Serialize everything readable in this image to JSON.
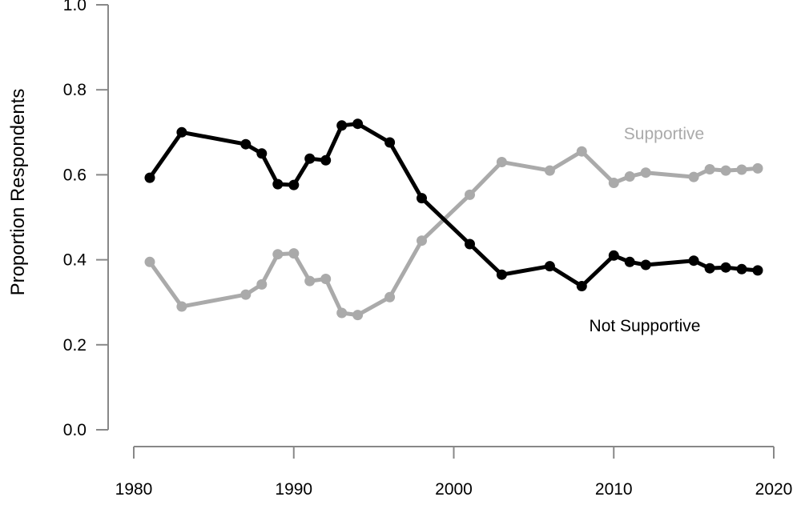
{
  "chart_data": {
    "type": "line",
    "title": "",
    "xlabel": "",
    "ylabel": "Proportion Respondents",
    "xlim": [
      1980,
      2020
    ],
    "ylim": [
      0,
      1
    ],
    "x_ticks": [
      "1980",
      "1990",
      "2000",
      "2010",
      "2020"
    ],
    "y_ticks": [
      "0.0",
      "0.2",
      "0.4",
      "0.6",
      "0.8",
      "1.0"
    ],
    "grid": false,
    "series": [
      {
        "name": "Supportive",
        "color": "#aaaaaa",
        "points": [
          [
            1981,
            0.395
          ],
          [
            1983,
            0.29
          ],
          [
            1987,
            0.318
          ],
          [
            1988,
            0.342
          ],
          [
            1989,
            0.413
          ],
          [
            1990,
            0.415
          ],
          [
            1991,
            0.35
          ],
          [
            1992,
            0.355
          ],
          [
            1993,
            0.275
          ],
          [
            1994,
            0.27
          ],
          [
            1996,
            0.312
          ],
          [
            1998,
            0.445
          ],
          [
            2001,
            0.553
          ],
          [
            2003,
            0.63
          ],
          [
            2006,
            0.61
          ],
          [
            2008,
            0.655
          ],
          [
            2010,
            0.581
          ],
          [
            2011,
            0.596
          ],
          [
            2012,
            0.605
          ],
          [
            2015,
            0.595
          ],
          [
            2016,
            0.613
          ],
          [
            2017,
            0.61
          ],
          [
            2018,
            0.612
          ],
          [
            2019,
            0.615
          ]
        ]
      },
      {
        "name": "Not Supportive",
        "color": "#000000",
        "points": [
          [
            1981,
            0.593
          ],
          [
            1983,
            0.7
          ],
          [
            1987,
            0.672
          ],
          [
            1988,
            0.65
          ],
          [
            1989,
            0.578
          ],
          [
            1990,
            0.576
          ],
          [
            1991,
            0.638
          ],
          [
            1992,
            0.634
          ],
          [
            1993,
            0.716
          ],
          [
            1994,
            0.72
          ],
          [
            1996,
            0.676
          ],
          [
            1998,
            0.545
          ],
          [
            2001,
            0.437
          ],
          [
            2003,
            0.365
          ],
          [
            2006,
            0.385
          ],
          [
            2008,
            0.338
          ],
          [
            2010,
            0.41
          ],
          [
            2011,
            0.395
          ],
          [
            2012,
            0.388
          ],
          [
            2015,
            0.398
          ],
          [
            2016,
            0.38
          ],
          [
            2017,
            0.382
          ],
          [
            2018,
            0.378
          ],
          [
            2019,
            0.375
          ]
        ]
      }
    ]
  }
}
